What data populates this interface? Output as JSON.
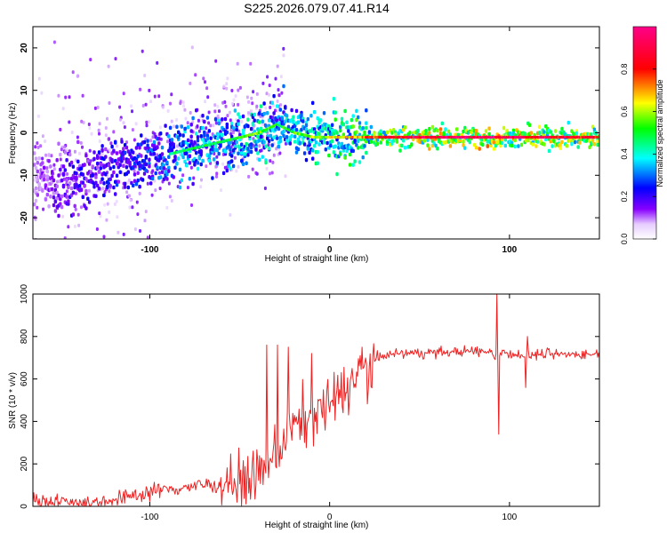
{
  "chart_data": [
    {
      "type": "heatmap",
      "title": "S225.2026.079.07.41.R14",
      "xlabel": "Height of straight line (km)",
      "ylabel": "Frequency (Hz)",
      "xlim": [
        -165,
        150
      ],
      "ylim": [
        -25,
        25
      ],
      "xticks": [
        -100,
        0,
        100
      ],
      "yticks": [
        -20,
        -10,
        0,
        10,
        20
      ],
      "grid": false,
      "colorbar": {
        "label": "Normalized spectral amplitude",
        "ticks": [
          "0.0",
          "0.2",
          "0.4",
          "0.6",
          "0.8"
        ],
        "range": [
          0,
          1
        ],
        "colormap": [
          "#ffffff",
          "#8800ff",
          "#0000ff",
          "#00ffff",
          "#00ff00",
          "#ffff00",
          "#ff0000",
          "#ff0088"
        ]
      },
      "ridge": {
        "x": [
          -165,
          -150,
          -140,
          -130,
          -120,
          -110,
          -100,
          -90,
          -80,
          -70,
          -60,
          -50,
          -40,
          -30,
          -20,
          -10,
          0,
          10,
          20,
          40,
          60,
          80,
          100,
          120,
          150
        ],
        "frequency": [
          -11,
          -12,
          -11,
          -9,
          -8,
          -7,
          -6,
          -5,
          -4,
          -3,
          -2,
          -1,
          0,
          2,
          0,
          -1,
          -1,
          -1,
          -1,
          -1,
          -1,
          -1,
          -1,
          -1,
          -1
        ],
        "amplitude": [
          0.15,
          0.25,
          0.3,
          0.3,
          0.35,
          0.35,
          0.4,
          0.45,
          0.5,
          0.5,
          0.5,
          0.55,
          0.6,
          0.5,
          0.55,
          0.6,
          0.65,
          0.7,
          0.75,
          0.9,
          0.95,
          0.95,
          0.95,
          0.9,
          0.85
        ]
      }
    },
    {
      "type": "line",
      "title": "",
      "xlabel": "Height of straight line (km)",
      "ylabel": "SNR (10 * v/v)",
      "xlim": [
        -165,
        150
      ],
      "ylim": [
        0,
        1000
      ],
      "xticks": [
        -100,
        0,
        100
      ],
      "yticks": [
        0,
        200,
        400,
        600,
        800,
        1000
      ],
      "grid": false,
      "series": [
        {
          "color": "#ee2222",
          "x": [
            -165,
            -150,
            -140,
            -130,
            -120,
            -110,
            -100,
            -90,
            -80,
            -70,
            -60,
            -50,
            -45,
            -40,
            -35,
            -30,
            -25,
            -20,
            -15,
            -10,
            -5,
            0,
            5,
            10,
            15,
            20,
            25,
            30,
            40,
            60,
            80,
            90,
            92,
            94,
            96,
            100,
            110,
            120,
            140,
            150
          ],
          "snr": [
            30,
            25,
            20,
            20,
            30,
            50,
            70,
            80,
            90,
            100,
            110,
            110,
            130,
            150,
            180,
            250,
            300,
            380,
            400,
            430,
            460,
            480,
            520,
            560,
            620,
            660,
            690,
            710,
            720,
            725,
            730,
            730,
            700,
            710,
            730,
            720,
            710,
            720,
            715,
            720
          ],
          "spikes": [
            {
              "x": -35,
              "snr": 760
            },
            {
              "x": -29,
              "snr": 760
            },
            {
              "x": -23,
              "snr": 750
            },
            {
              "x": -10,
              "snr": 720
            },
            {
              "x": 93,
              "snr": 1000
            },
            {
              "x": 94,
              "snr": 340
            },
            {
              "x": 109,
              "snr": 560
            },
            {
              "x": 110,
              "snr": 800
            }
          ]
        }
      ]
    }
  ]
}
